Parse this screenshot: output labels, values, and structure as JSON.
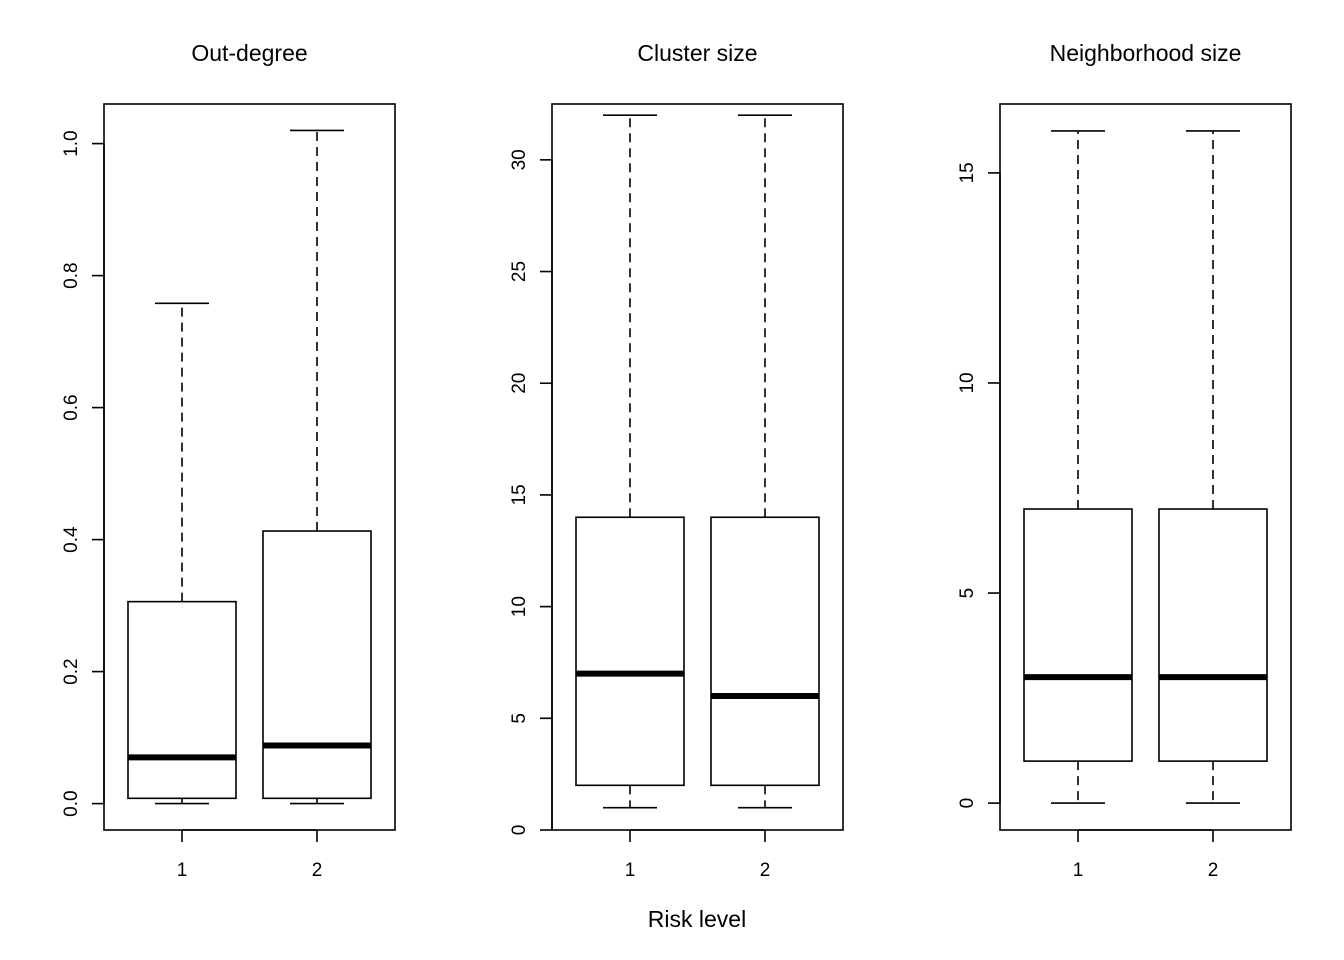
{
  "figure": {
    "xlabel": "Risk level"
  },
  "chart_data": [
    {
      "type": "boxplot",
      "title": "Out-degree",
      "categories": [
        "1",
        "2"
      ],
      "ylim": [
        -0.04,
        1.06
      ],
      "yticks": [
        0.0,
        0.2,
        0.4,
        0.6,
        0.8,
        1.0
      ],
      "ytick_labels": [
        "0.0",
        "0.2",
        "0.4",
        "0.6",
        "0.8",
        "1.0"
      ],
      "boxes": [
        {
          "category": "1",
          "whisker_low": 0.0,
          "q1": 0.008,
          "median": 0.07,
          "q3": 0.306,
          "whisker_high": 0.758
        },
        {
          "category": "2",
          "whisker_low": 0.0,
          "q1": 0.008,
          "median": 0.088,
          "q3": 0.413,
          "whisker_high": 1.02
        }
      ]
    },
    {
      "type": "boxplot",
      "title": "Cluster size",
      "categories": [
        "1",
        "2"
      ],
      "ylim": [
        0,
        32.5
      ],
      "yticks": [
        0,
        5,
        10,
        15,
        20,
        25,
        30
      ],
      "ytick_labels": [
        "0",
        "5",
        "10",
        "15",
        "20",
        "25",
        "30"
      ],
      "boxes": [
        {
          "category": "1",
          "whisker_low": 1,
          "q1": 2,
          "median": 7,
          "q3": 14,
          "whisker_high": 32
        },
        {
          "category": "2",
          "whisker_low": 1,
          "q1": 2,
          "median": 6,
          "q3": 14,
          "whisker_high": 32
        }
      ]
    },
    {
      "type": "boxplot",
      "title": "Neighborhood size",
      "categories": [
        "1",
        "2"
      ],
      "ylim": [
        -0.64,
        16.64
      ],
      "yticks": [
        0,
        5,
        10,
        15
      ],
      "ytick_labels": [
        "0",
        "5",
        "10",
        "15"
      ],
      "boxes": [
        {
          "category": "1",
          "whisker_low": 0,
          "q1": 1,
          "median": 3,
          "q3": 7,
          "whisker_high": 16
        },
        {
          "category": "2",
          "whisker_low": 0,
          "q1": 1,
          "median": 3,
          "q3": 7,
          "whisker_high": 16
        }
      ]
    }
  ]
}
